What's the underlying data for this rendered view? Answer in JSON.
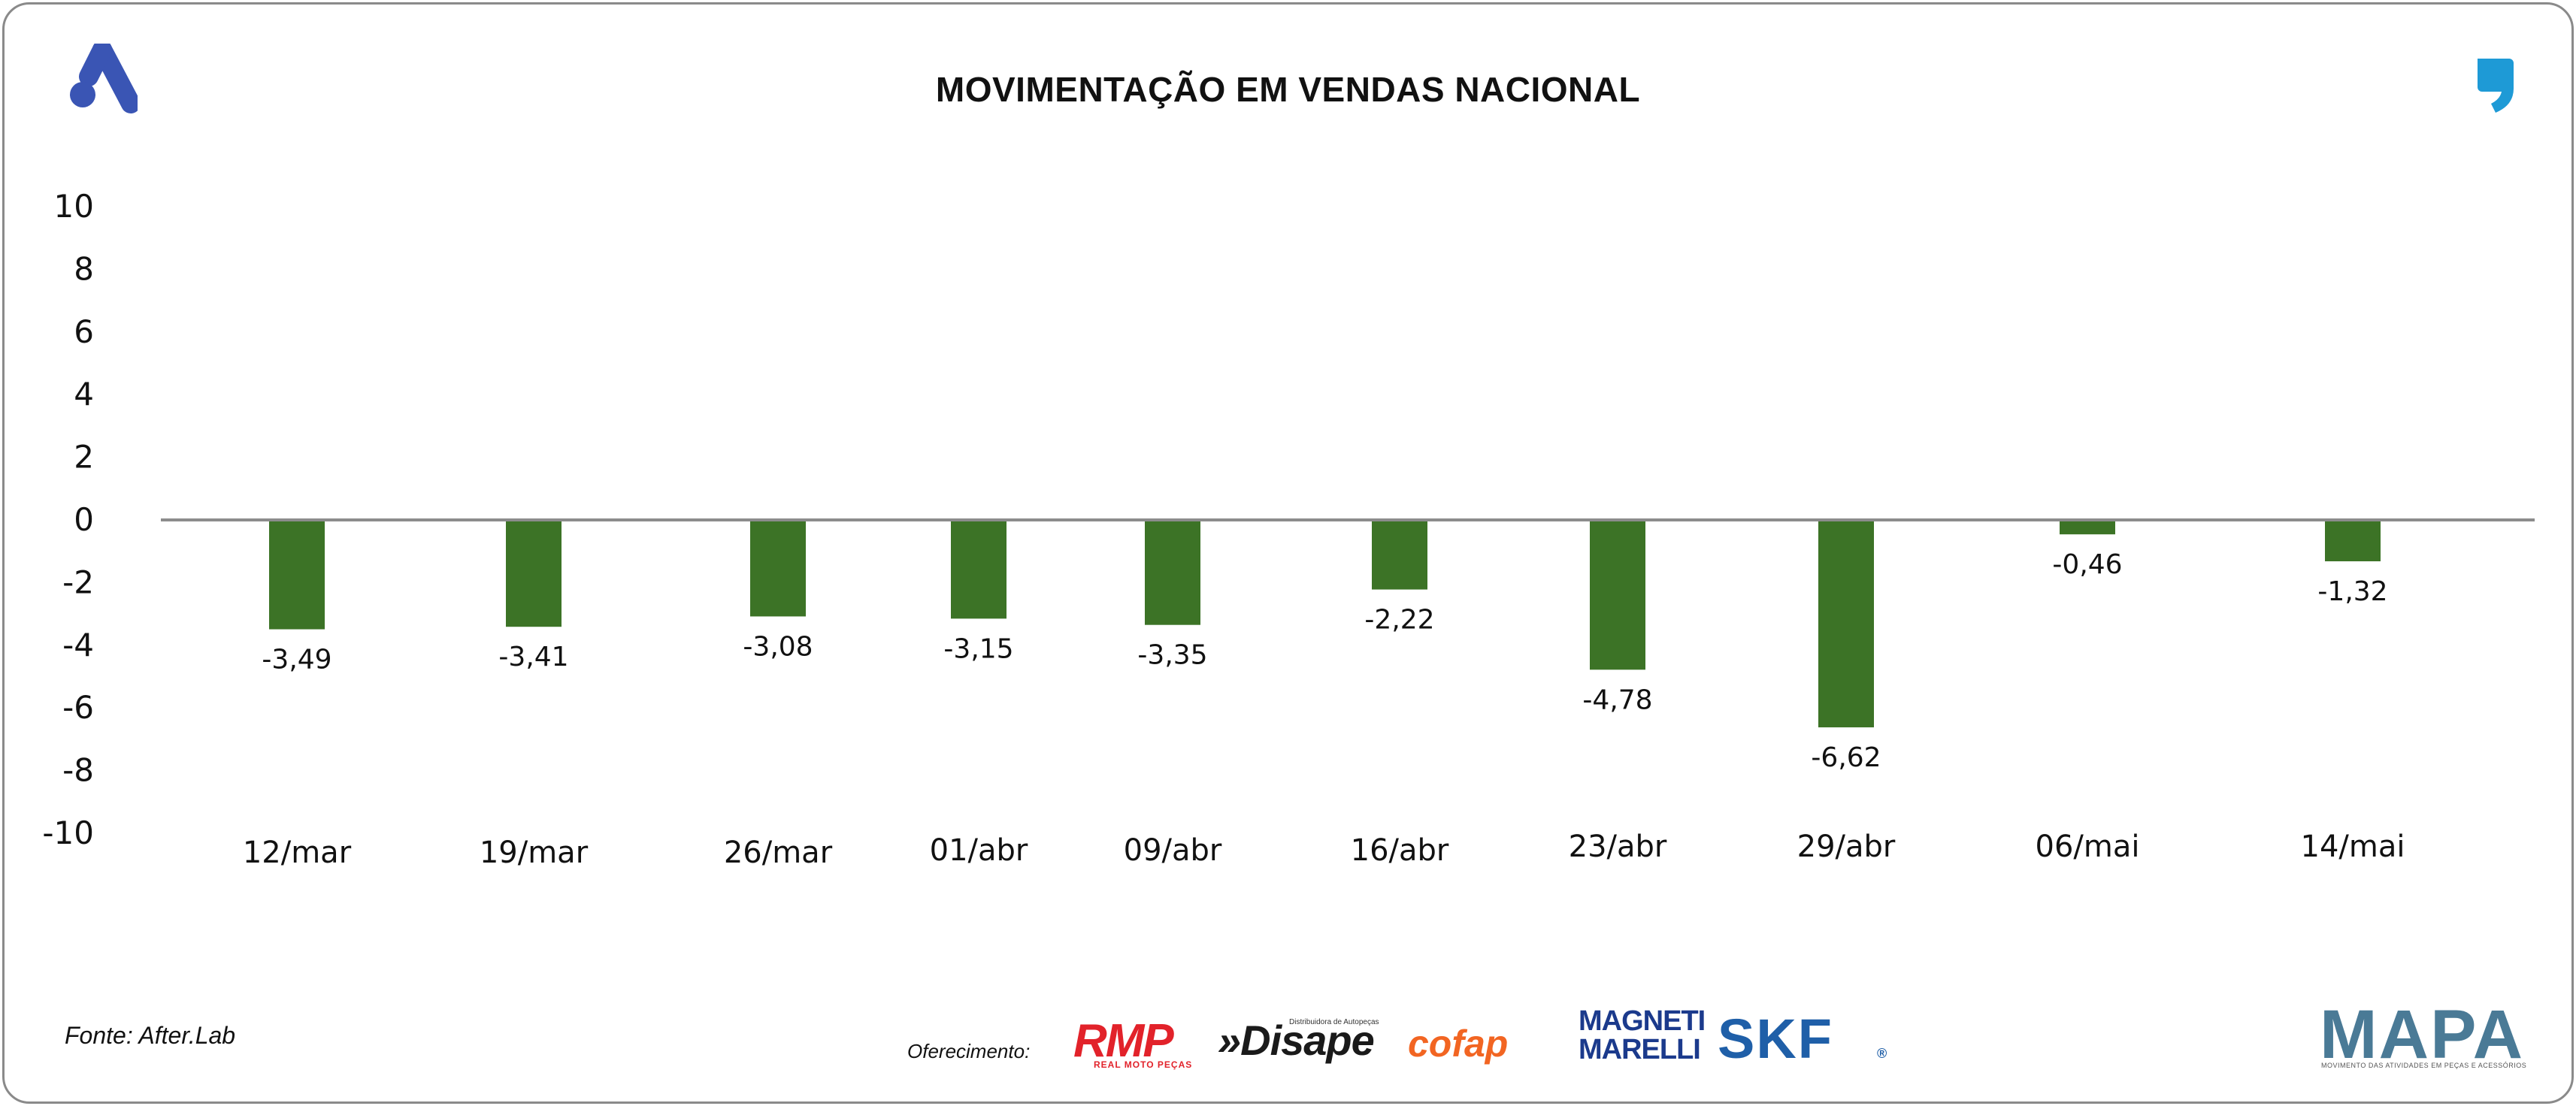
{
  "chart_data": {
    "type": "bar",
    "title": "MOVIMENTAÇÃO EM VENDAS NACIONAL",
    "categories": [
      "12/mar",
      "19/mar",
      "26/mar",
      "01/abr",
      "09/abr",
      "16/abr",
      "23/abr",
      "29/abr",
      "06/mai",
      "14/mai"
    ],
    "values": [
      -3.49,
      -3.41,
      -3.08,
      -3.15,
      -3.35,
      -2.22,
      -4.78,
      -6.62,
      -0.46,
      -1.32
    ],
    "data_labels": [
      "-3,49",
      "-3,41",
      "-3,08",
      "-3,15",
      "-3,35",
      "-2,22",
      "-4,78",
      "-6,62",
      "-0,46",
      "-1,32"
    ],
    "ylim": [
      -10,
      10
    ],
    "yticks": [
      10,
      8,
      6,
      4,
      2,
      0,
      -2,
      -4,
      -6,
      -8,
      -10
    ],
    "grid": false,
    "legend": "none",
    "bar_color": "#3c7326",
    "zero_line_color": "#8c8c8c"
  },
  "footer": {
    "source": "Fonte: After.Lab",
    "sponsor_label": "Oferecimento:",
    "sponsors": [
      "RMP",
      "REAL MOTO PEÇAS",
      "»Disape",
      "Distribuidora de Autopeças",
      "cofap",
      "MAGNETI",
      "MARELLI",
      "SKF",
      "®"
    ],
    "mapa": "MAPA",
    "mapa_sub": "MOVIMENTO DAS ATIVIDADES EM PEÇAS E ACESSÓRIOS"
  },
  "icons": {
    "left_logo": "brand-a-icon",
    "right_logo": "quote-mark-icon"
  },
  "colors": {
    "brand_blue": "#3a55b4",
    "quote_blue": "#1e9ad6"
  }
}
